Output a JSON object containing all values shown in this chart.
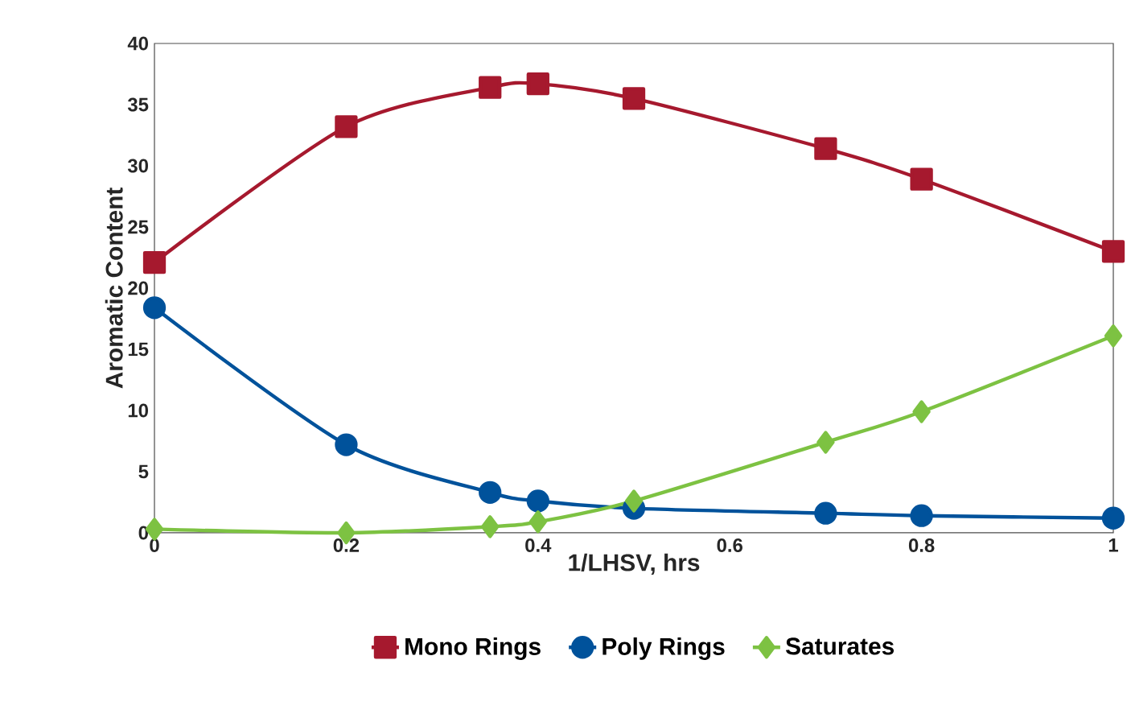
{
  "chart_data": {
    "type": "line",
    "xlabel": "1/LHSV, hrs",
    "ylabel": "Aromatic Content",
    "x": [
      0,
      0.2,
      0.35,
      0.4,
      0.5,
      0.7,
      0.8,
      1
    ],
    "series": [
      {
        "name": "Mono Rings",
        "color": "#a6192e",
        "marker": "square",
        "values": [
          22.1,
          33.2,
          36.4,
          36.7,
          35.5,
          31.4,
          28.9,
          23.0
        ]
      },
      {
        "name": "Poly Rings",
        "color": "#00529b",
        "marker": "circle",
        "values": [
          18.4,
          7.2,
          3.3,
          2.6,
          2.0,
          1.6,
          1.4,
          1.2
        ]
      },
      {
        "name": "Saturates",
        "color": "#7dc242",
        "marker": "diamond",
        "values": [
          0.3,
          0.0,
          0.5,
          0.9,
          2.6,
          7.4,
          9.9,
          16.1
        ]
      }
    ],
    "xlim": [
      0,
      1
    ],
    "ylim": [
      0,
      40
    ],
    "xticks": [
      0,
      0.2,
      0.4,
      0.6,
      0.8,
      1
    ],
    "yticks": [
      0,
      5,
      10,
      15,
      20,
      25,
      30,
      35,
      40
    ],
    "grid": false,
    "legend": "bottom",
    "line_style": "solid"
  }
}
